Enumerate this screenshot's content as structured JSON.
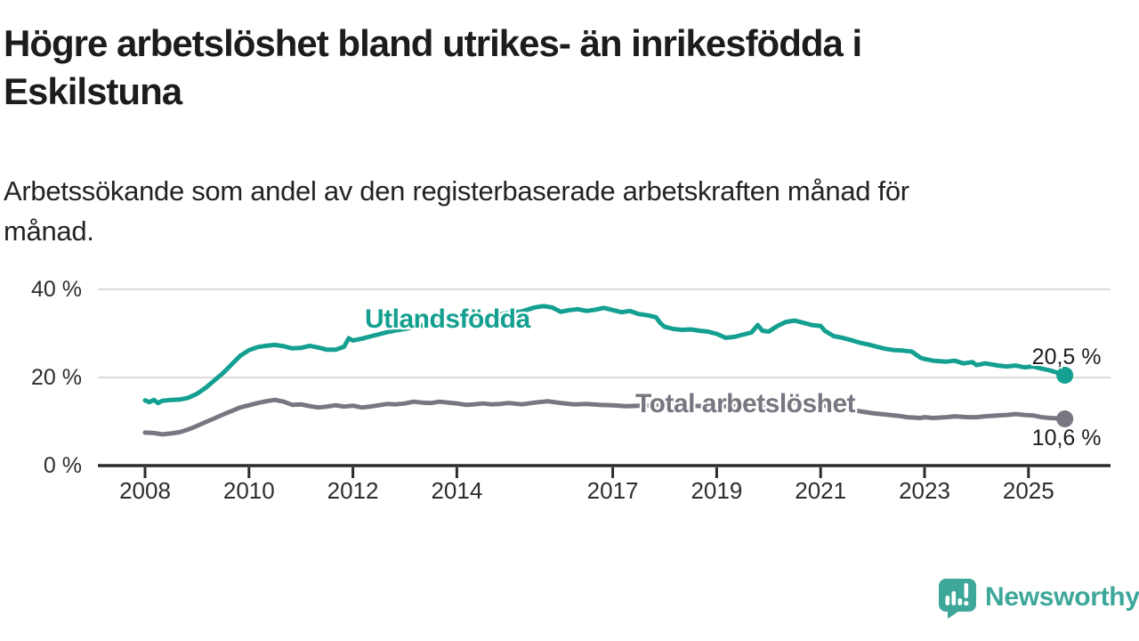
{
  "title": "Högre arbetslöshet bland utrikes- än inrikesfödda i\nEskilstuna",
  "subtitle": "Arbetssökande som andel av den registerbaserade arbetskraften månad för\nmånad.",
  "logo": {
    "text": "Newsworthy",
    "icon": "speech-bubble-bar-chart-icon",
    "color": "#3da79a"
  },
  "colors": {
    "teal_line": "#14a090",
    "gray_line": "#787680",
    "axis": "#2b2b2b",
    "grid": "#d5d5d5",
    "text": "#1d1d1d"
  },
  "chart_data": {
    "type": "line",
    "title": "Högre arbetslöshet bland utrikes- än inrikesfödda i Eskilstuna",
    "xlabel": "",
    "ylabel": "",
    "unit": "%",
    "ylim": [
      0,
      42
    ],
    "xlim": [
      2007.1,
      2026.6
    ],
    "grid": "horizontal",
    "legend_position": "inline-labels",
    "y_ticks": [
      {
        "value": 40,
        "label": "40 %"
      },
      {
        "value": 20,
        "label": "20 %"
      },
      {
        "value": 0,
        "label": "0 %"
      }
    ],
    "x_ticks": [
      {
        "value": 2008,
        "label": "2008"
      },
      {
        "value": 2010,
        "label": "2010"
      },
      {
        "value": 2012,
        "label": "2012"
      },
      {
        "value": 2014,
        "label": "2014"
      },
      {
        "value": 2017,
        "label": "2017"
      },
      {
        "value": 2019,
        "label": "2019"
      },
      {
        "value": 2021,
        "label": "2021"
      },
      {
        "value": 2023,
        "label": "2023"
      },
      {
        "value": 2025,
        "label": "2025"
      }
    ],
    "series": [
      {
        "name": "Utlandsfödda",
        "color": "#14a090",
        "end_label": "20,5 %",
        "last_value": 20.5,
        "points": [
          [
            2008.0,
            14.8
          ],
          [
            2008.08,
            14.4
          ],
          [
            2008.17,
            14.9
          ],
          [
            2008.25,
            14.2
          ],
          [
            2008.33,
            14.7
          ],
          [
            2008.5,
            14.9
          ],
          [
            2008.67,
            15.0
          ],
          [
            2008.83,
            15.4
          ],
          [
            2009.0,
            16.3
          ],
          [
            2009.17,
            17.7
          ],
          [
            2009.33,
            19.3
          ],
          [
            2009.5,
            21.0
          ],
          [
            2009.67,
            23.0
          ],
          [
            2009.83,
            24.9
          ],
          [
            2010.0,
            26.2
          ],
          [
            2010.17,
            26.9
          ],
          [
            2010.33,
            27.2
          ],
          [
            2010.5,
            27.4
          ],
          [
            2010.67,
            27.1
          ],
          [
            2010.83,
            26.6
          ],
          [
            2011.0,
            26.7
          ],
          [
            2011.17,
            27.2
          ],
          [
            2011.33,
            26.8
          ],
          [
            2011.5,
            26.3
          ],
          [
            2011.67,
            26.3
          ],
          [
            2011.83,
            27.0
          ],
          [
            2011.92,
            28.9
          ],
          [
            2012.0,
            28.4
          ],
          [
            2012.17,
            28.8
          ],
          [
            2012.33,
            29.3
          ],
          [
            2012.5,
            29.8
          ],
          [
            2012.67,
            30.3
          ],
          [
            2012.83,
            30.7
          ],
          [
            2013.0,
            31.0
          ],
          [
            2013.17,
            31.4
          ],
          [
            2013.25,
            32.2
          ],
          [
            2013.33,
            31.7
          ],
          [
            2013.5,
            32.0
          ],
          [
            2013.75,
            32.5
          ],
          [
            2014.0,
            32.8
          ],
          [
            2014.25,
            33.3
          ],
          [
            2014.5,
            33.8
          ],
          [
            2014.75,
            34.3
          ],
          [
            2015.0,
            34.6
          ],
          [
            2015.25,
            35.0
          ],
          [
            2015.5,
            35.9
          ],
          [
            2015.67,
            36.2
          ],
          [
            2015.83,
            35.9
          ],
          [
            2016.0,
            34.9
          ],
          [
            2016.17,
            35.3
          ],
          [
            2016.33,
            35.5
          ],
          [
            2016.5,
            35.1
          ],
          [
            2016.67,
            35.4
          ],
          [
            2016.83,
            35.8
          ],
          [
            2017.0,
            35.3
          ],
          [
            2017.17,
            34.8
          ],
          [
            2017.33,
            35.1
          ],
          [
            2017.5,
            34.4
          ],
          [
            2017.67,
            34.1
          ],
          [
            2017.83,
            33.7
          ],
          [
            2017.92,
            32.3
          ],
          [
            2018.0,
            31.5
          ],
          [
            2018.17,
            31.0
          ],
          [
            2018.33,
            30.8
          ],
          [
            2018.5,
            30.9
          ],
          [
            2018.67,
            30.6
          ],
          [
            2018.83,
            30.4
          ],
          [
            2019.0,
            29.9
          ],
          [
            2019.17,
            29.0
          ],
          [
            2019.33,
            29.2
          ],
          [
            2019.5,
            29.7
          ],
          [
            2019.67,
            30.2
          ],
          [
            2019.79,
            31.9
          ],
          [
            2019.88,
            30.6
          ],
          [
            2020.0,
            30.4
          ],
          [
            2020.17,
            31.7
          ],
          [
            2020.33,
            32.6
          ],
          [
            2020.5,
            32.9
          ],
          [
            2020.67,
            32.4
          ],
          [
            2020.83,
            31.9
          ],
          [
            2021.0,
            31.7
          ],
          [
            2021.08,
            30.6
          ],
          [
            2021.25,
            29.4
          ],
          [
            2021.42,
            29.0
          ],
          [
            2021.58,
            28.5
          ],
          [
            2021.75,
            27.9
          ],
          [
            2021.92,
            27.5
          ],
          [
            2022.08,
            27.0
          ],
          [
            2022.25,
            26.5
          ],
          [
            2022.42,
            26.2
          ],
          [
            2022.58,
            26.1
          ],
          [
            2022.75,
            25.9
          ],
          [
            2022.92,
            24.5
          ],
          [
            2023.0,
            24.2
          ],
          [
            2023.17,
            23.8
          ],
          [
            2023.42,
            23.6
          ],
          [
            2023.58,
            23.8
          ],
          [
            2023.75,
            23.2
          ],
          [
            2023.92,
            23.5
          ],
          [
            2024.0,
            22.8
          ],
          [
            2024.17,
            23.2
          ],
          [
            2024.42,
            22.7
          ],
          [
            2024.58,
            22.5
          ],
          [
            2024.75,
            22.7
          ],
          [
            2024.92,
            22.3
          ],
          [
            2025.08,
            22.5
          ],
          [
            2025.25,
            22.0
          ],
          [
            2025.42,
            21.6
          ],
          [
            2025.58,
            21.0
          ],
          [
            2025.7,
            20.5
          ]
        ]
      },
      {
        "name": "Total arbetslöshet",
        "color": "#787680",
        "end_label": "10,6 %",
        "last_value": 10.6,
        "points": [
          [
            2008.0,
            7.5
          ],
          [
            2008.17,
            7.4
          ],
          [
            2008.33,
            7.1
          ],
          [
            2008.5,
            7.3
          ],
          [
            2008.67,
            7.6
          ],
          [
            2008.83,
            8.2
          ],
          [
            2009.0,
            9.0
          ],
          [
            2009.17,
            9.9
          ],
          [
            2009.33,
            10.7
          ],
          [
            2009.5,
            11.6
          ],
          [
            2009.67,
            12.4
          ],
          [
            2009.83,
            13.2
          ],
          [
            2010.0,
            13.7
          ],
          [
            2010.17,
            14.2
          ],
          [
            2010.33,
            14.6
          ],
          [
            2010.5,
            14.9
          ],
          [
            2010.67,
            14.5
          ],
          [
            2010.83,
            13.8
          ],
          [
            2011.0,
            13.9
          ],
          [
            2011.17,
            13.5
          ],
          [
            2011.33,
            13.2
          ],
          [
            2011.5,
            13.4
          ],
          [
            2011.67,
            13.7
          ],
          [
            2011.83,
            13.4
          ],
          [
            2012.0,
            13.6
          ],
          [
            2012.17,
            13.2
          ],
          [
            2012.33,
            13.4
          ],
          [
            2012.5,
            13.7
          ],
          [
            2012.67,
            14.0
          ],
          [
            2012.83,
            13.9
          ],
          [
            2013.0,
            14.1
          ],
          [
            2013.17,
            14.5
          ],
          [
            2013.33,
            14.3
          ],
          [
            2013.5,
            14.2
          ],
          [
            2013.67,
            14.5
          ],
          [
            2013.83,
            14.3
          ],
          [
            2014.0,
            14.1
          ],
          [
            2014.17,
            13.8
          ],
          [
            2014.33,
            13.9
          ],
          [
            2014.5,
            14.1
          ],
          [
            2014.67,
            13.9
          ],
          [
            2014.83,
            14.0
          ],
          [
            2015.0,
            14.2
          ],
          [
            2015.25,
            13.9
          ],
          [
            2015.5,
            14.3
          ],
          [
            2015.75,
            14.6
          ],
          [
            2016.0,
            14.2
          ],
          [
            2016.25,
            13.9
          ],
          [
            2016.5,
            14.0
          ],
          [
            2016.75,
            13.8
          ],
          [
            2017.0,
            13.7
          ],
          [
            2017.25,
            13.5
          ],
          [
            2017.5,
            13.6
          ],
          [
            2018.0,
            13.8
          ],
          [
            2018.5,
            13.6
          ],
          [
            2019.0,
            13.4
          ],
          [
            2019.5,
            13.6
          ],
          [
            2020.0,
            13.5
          ],
          [
            2020.5,
            14.4
          ],
          [
            2021.0,
            13.8
          ],
          [
            2021.5,
            12.8
          ],
          [
            2022.0,
            11.9
          ],
          [
            2022.33,
            11.5
          ],
          [
            2022.5,
            11.3
          ],
          [
            2022.67,
            11.0
          ],
          [
            2022.92,
            10.8
          ],
          [
            2023.0,
            11.0
          ],
          [
            2023.17,
            10.8
          ],
          [
            2023.42,
            11.0
          ],
          [
            2023.58,
            11.2
          ],
          [
            2023.83,
            11.0
          ],
          [
            2024.0,
            11.0
          ],
          [
            2024.17,
            11.2
          ],
          [
            2024.42,
            11.4
          ],
          [
            2024.58,
            11.5
          ],
          [
            2024.75,
            11.7
          ],
          [
            2024.92,
            11.5
          ],
          [
            2025.08,
            11.4
          ],
          [
            2025.25,
            11.0
          ],
          [
            2025.42,
            10.8
          ],
          [
            2025.58,
            10.7
          ],
          [
            2025.7,
            10.6
          ]
        ]
      }
    ]
  }
}
